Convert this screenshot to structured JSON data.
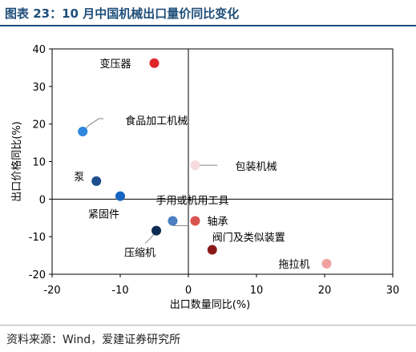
{
  "figure": {
    "title": "图表 23：10 月中国机械出口量价同比变化",
    "source": "资料来源：Wind，爱建证券研究所"
  },
  "chart_data": {
    "type": "scatter",
    "xlabel": "出口数量同比(%)",
    "ylabel": "出口价格同比(%)",
    "xlim": [
      -20,
      30
    ],
    "ylim": [
      -20,
      40
    ],
    "xticks": [
      -20,
      -10,
      0,
      10,
      20,
      30
    ],
    "yticks": [
      -20,
      -10,
      0,
      10,
      20,
      30,
      40
    ],
    "grid": false,
    "points": [
      {
        "label": "变压器",
        "x": -5.0,
        "y": 36.2,
        "color": "#e0262b"
      },
      {
        "label": "食品加工机械",
        "x": -15.5,
        "y": 18.0,
        "color": "#2e86de"
      },
      {
        "label": "包装机械",
        "x": 1.0,
        "y": 9.0,
        "color": "#f6dcdc"
      },
      {
        "label": "泵",
        "x": -13.5,
        "y": 4.8,
        "color": "#1f4e8c"
      },
      {
        "label": "紧固件",
        "x": -10.0,
        "y": 0.8,
        "color": "#1565c0"
      },
      {
        "label": "手用或机用工具",
        "x": -2.3,
        "y": -5.8,
        "color": "#4a7fc1"
      },
      {
        "label": "轴承",
        "x": 1.0,
        "y": -5.8,
        "color": "#d9534f"
      },
      {
        "label": "压缩机",
        "x": -4.7,
        "y": -8.4,
        "color": "#0d2b52"
      },
      {
        "label": "阀门及类似装置",
        "x": 3.5,
        "y": -13.5,
        "color": "#8b1a1a"
      },
      {
        "label": "拖拉机",
        "x": 20.3,
        "y": -17.2,
        "color": "#f2a0a0"
      }
    ]
  }
}
